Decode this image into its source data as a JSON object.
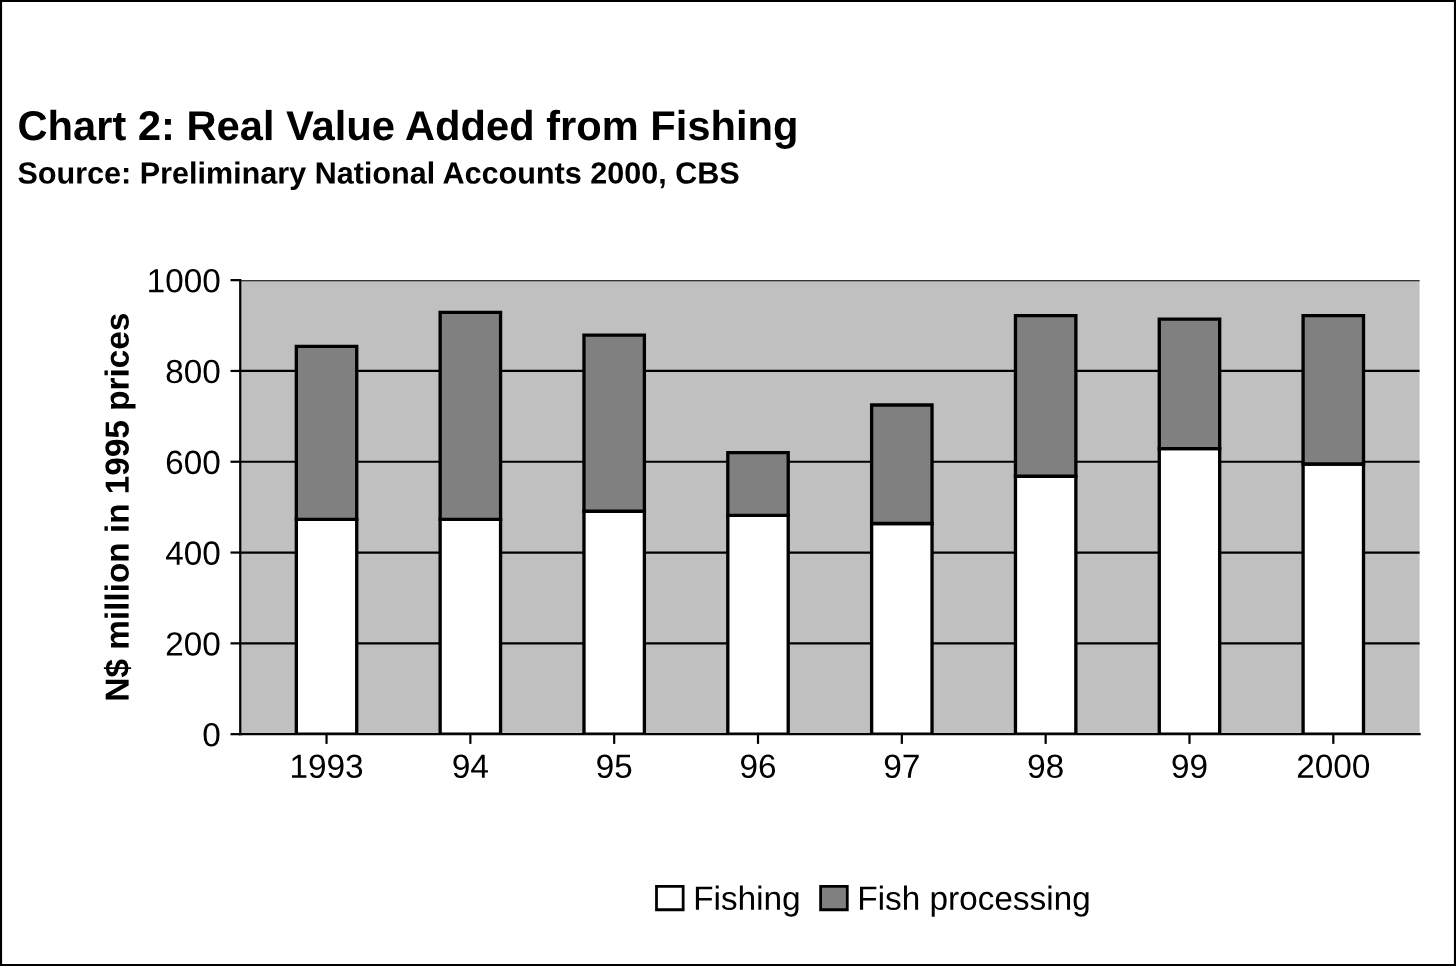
{
  "chart_data": {
    "type": "bar",
    "stacked": true,
    "title": "Chart 2: Real Value Added from Fishing",
    "subtitle": "Source: Preliminary National Accounts 2000, CBS",
    "ylabel": "N$ million in 1995 prices",
    "categories": [
      "1993",
      "94",
      "95",
      "96",
      "97",
      "98",
      "99",
      "2000"
    ],
    "series": [
      {
        "name": "Fishing",
        "color": "#ffffff",
        "values": [
          473,
          473,
          491,
          482,
          464,
          568,
          629,
          595
        ]
      },
      {
        "name": "Fish processing",
        "color": "#808080",
        "values": [
          381,
          456,
          388,
          138,
          261,
          354,
          285,
          327
        ]
      }
    ],
    "ylim": [
      0,
      1000
    ],
    "yticks": [
      0,
      200,
      400,
      600,
      800,
      1000
    ],
    "grid": "y",
    "legend": "bottom"
  }
}
